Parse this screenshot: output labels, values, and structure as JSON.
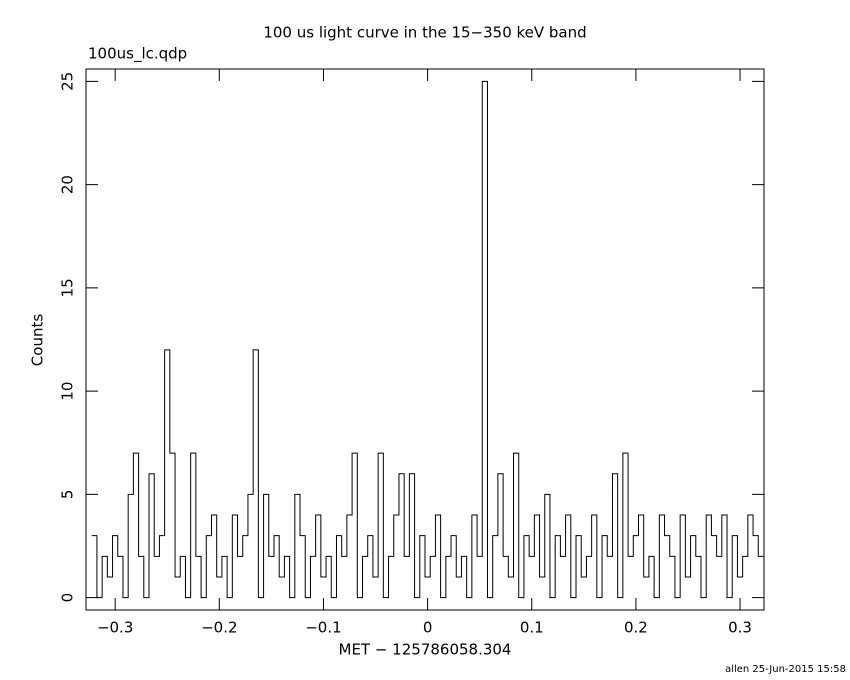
{
  "chart_data": {
    "type": "step",
    "title": "100 us light curve in the 15−350 keV band",
    "subtitle": "100us_lc.qdp",
    "x_label": "MET − 125786058.304",
    "y_label": "Counts",
    "footer": "allen 25-Jun-2015 15:58",
    "color": "#000000",
    "xlim": [
      -0.328,
      0.323
    ],
    "ylim": [
      -0.6,
      25.6
    ],
    "xticks": [
      {
        "value": -0.3,
        "label": "−0.3"
      },
      {
        "value": -0.2,
        "label": "−0.2"
      },
      {
        "value": -0.1,
        "label": "−0.1"
      },
      0,
      0.1,
      0.2,
      0.3
    ],
    "yticks": [
      0,
      5,
      10,
      15,
      20,
      25
    ],
    "x": [
      -0.32,
      -0.315,
      -0.31,
      -0.305,
      -0.3,
      -0.295,
      -0.29,
      -0.285,
      -0.28,
      -0.275,
      -0.27,
      -0.265,
      -0.26,
      -0.255,
      -0.25,
      -0.245,
      -0.24,
      -0.235,
      -0.23,
      -0.225,
      -0.22,
      -0.215,
      -0.21,
      -0.205,
      -0.2,
      -0.195,
      -0.19,
      -0.185,
      -0.18,
      -0.175,
      -0.17,
      -0.165,
      -0.16,
      -0.155,
      -0.15,
      -0.145,
      -0.14,
      -0.135,
      -0.13,
      -0.125,
      -0.12,
      -0.115,
      -0.11,
      -0.105,
      -0.1,
      -0.095,
      -0.09,
      -0.085,
      -0.08,
      -0.075,
      -0.07,
      -0.065,
      -0.06,
      -0.055,
      -0.05,
      -0.045,
      -0.04,
      -0.035,
      -0.03,
      -0.025,
      -0.02,
      -0.015,
      -0.01,
      -0.005,
      0,
      0.005,
      0.01,
      0.015,
      0.02,
      0.025,
      0.03,
      0.035,
      0.04,
      0.045,
      0.05,
      0.055,
      0.06,
      0.065,
      0.07,
      0.075,
      0.08,
      0.085,
      0.09,
      0.095,
      0.1,
      0.105,
      0.11,
      0.115,
      0.12,
      0.125,
      0.13,
      0.135,
      0.14,
      0.145,
      0.15,
      0.155,
      0.16,
      0.165,
      0.17,
      0.175,
      0.18,
      0.185,
      0.19,
      0.195,
      0.2,
      0.205,
      0.21,
      0.215,
      0.22,
      0.225,
      0.23,
      0.235,
      0.24,
      0.245,
      0.25,
      0.255,
      0.26,
      0.265,
      0.27,
      0.275,
      0.28,
      0.285,
      0.29,
      0.295,
      0.3,
      0.305,
      0.31,
      0.315,
      0.32
    ],
    "values": [
      3,
      0,
      2,
      1,
      3,
      2,
      0,
      5,
      7,
      2,
      0,
      6,
      2,
      3,
      12,
      7,
      1,
      2,
      0,
      7,
      2,
      0,
      3,
      4,
      1,
      2,
      0,
      4,
      2,
      3,
      5,
      12,
      0,
      5,
      2,
      3,
      1,
      2,
      0,
      5,
      3,
      0,
      2,
      4,
      1,
      2,
      0,
      3,
      2,
      4,
      7,
      0,
      2,
      3,
      1,
      7,
      0,
      2,
      4,
      6,
      2,
      6,
      0,
      3,
      1,
      2,
      4,
      0,
      2,
      3,
      1,
      2,
      0,
      4,
      2,
      25,
      0,
      3,
      6,
      2,
      1,
      7,
      0,
      3,
      2,
      4,
      1,
      5,
      0,
      3,
      2,
      4,
      0,
      3,
      1,
      2,
      4,
      0,
      3,
      2,
      6,
      0,
      7,
      2,
      3,
      4,
      1,
      2,
      0,
      4,
      3,
      2,
      0,
      4,
      1,
      3,
      2,
      0,
      4,
      3,
      2,
      4,
      0,
      3,
      1,
      2,
      4,
      3,
      2
    ]
  }
}
